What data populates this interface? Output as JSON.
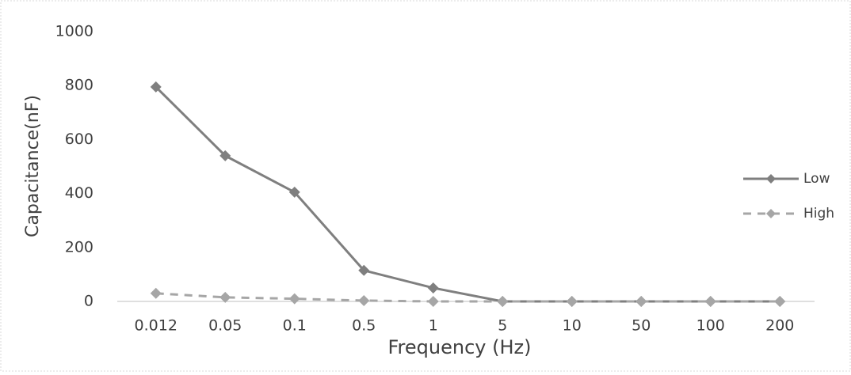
{
  "chart_data": {
    "type": "line",
    "x_label": "Frequency (Hz)",
    "y_label": "Capacitance(nF)",
    "categories": [
      "0.012",
      "0.05",
      "0.1",
      "0.5",
      "1",
      "5",
      "10",
      "50",
      "100",
      "200"
    ],
    "series": [
      {
        "name": "Low",
        "color": "#7f7f7f",
        "dashed": false,
        "values": [
          795,
          540,
          405,
          115,
          50,
          0,
          0,
          0,
          0,
          0
        ]
      },
      {
        "name": "High",
        "color": "#a6a6a6",
        "dashed": true,
        "values": [
          30,
          15,
          10,
          3,
          0,
          0,
          0,
          0,
          0,
          0
        ]
      }
    ],
    "ylim": [
      0,
      1000
    ],
    "yticks": [
      0,
      200,
      400,
      600,
      800,
      1000
    ],
    "grid": false,
    "legend": "right"
  }
}
